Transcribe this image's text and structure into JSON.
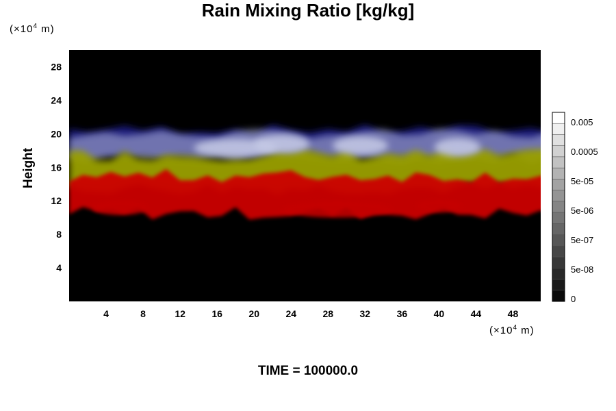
{
  "chart_data": {
    "type": "heatmap",
    "title": "Rain Mixing Ratio [kg/kg]",
    "ylabel": "Height",
    "x_unit": "(×10",
    "x_unit_exp": "4",
    "x_unit_tail": " m)",
    "y_unit": "(×10",
    "y_unit_exp": "4",
    "y_unit_tail": " m)",
    "xlim": [
      0,
      51
    ],
    "ylim": [
      0,
      30
    ],
    "x_ticks": [
      4,
      8,
      12,
      16,
      20,
      24,
      28,
      32,
      36,
      40,
      44,
      48
    ],
    "y_ticks": [
      4,
      8,
      12,
      16,
      20,
      24,
      28
    ],
    "colorbar": {
      "labels": [
        "0.005",
        "0.0005",
        "5e-05",
        "5e-06",
        "5e-07",
        "5e-08",
        "0"
      ],
      "levels": 17
    },
    "bands": [
      {
        "name": "blue",
        "color": "#1a1f86",
        "y_range": [
          17.5,
          20.5
        ]
      },
      {
        "name": "white-blue",
        "color": "#b7bddd",
        "y_range": [
          17.0,
          20.0
        ]
      },
      {
        "name": "yellow",
        "color": "#9aa000",
        "y_range": [
          13.5,
          17.5
        ]
      },
      {
        "name": "red",
        "color": "#cc0000",
        "y_range": [
          10.5,
          15.0
        ]
      }
    ]
  },
  "footer": {
    "time_label": "TIME = 100000.0"
  }
}
